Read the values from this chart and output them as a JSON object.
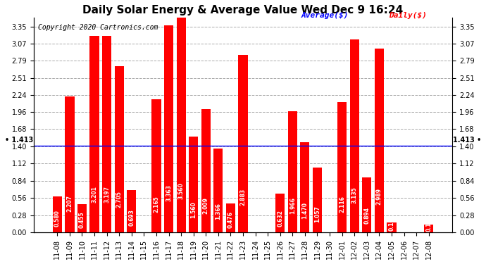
{
  "title": "Daily Solar Energy & Average Value Wed Dec 9 16:24",
  "copyright": "Copyright 2020 Cartronics.com",
  "categories": [
    "11-08",
    "11-09",
    "11-10",
    "11-11",
    "11-12",
    "11-13",
    "11-14",
    "11-15",
    "11-16",
    "11-17",
    "11-18",
    "11-19",
    "11-20",
    "11-21",
    "11-22",
    "11-23",
    "11-24",
    "11-25",
    "11-26",
    "11-27",
    "11-28",
    "11-29",
    "11-30",
    "12-01",
    "12-02",
    "12-03",
    "12-04",
    "12-05",
    "12-06",
    "12-07",
    "12-08"
  ],
  "values": [
    0.58,
    2.207,
    0.455,
    3.201,
    3.197,
    2.705,
    0.693,
    0.0,
    2.165,
    3.363,
    3.56,
    1.56,
    2.009,
    1.366,
    0.476,
    2.883,
    0.0,
    0.0,
    0.632,
    1.966,
    1.47,
    1.057,
    0.0,
    2.116,
    3.135,
    0.894,
    2.989,
    0.163,
    0.0,
    0.0,
    0.124
  ],
  "average": 1.413,
  "bar_color": "#ff0000",
  "avg_line_color": "#0000ff",
  "background_color": "#ffffff",
  "grid_color": "#aaaaaa",
  "ylim": [
    0.0,
    3.5
  ],
  "yticks": [
    0.0,
    0.28,
    0.56,
    0.84,
    1.12,
    1.4,
    1.68,
    1.96,
    2.24,
    2.51,
    2.79,
    3.07,
    3.35
  ],
  "title_fontsize": 11,
  "tick_fontsize": 7,
  "value_fontsize": 5.5,
  "copyright_fontsize": 7,
  "legend_fontsize": 8,
  "avg_label": "Average($)",
  "daily_label": "Daily($)",
  "avg_text_color": "#0000ff",
  "daily_text_color": "#ff0000"
}
